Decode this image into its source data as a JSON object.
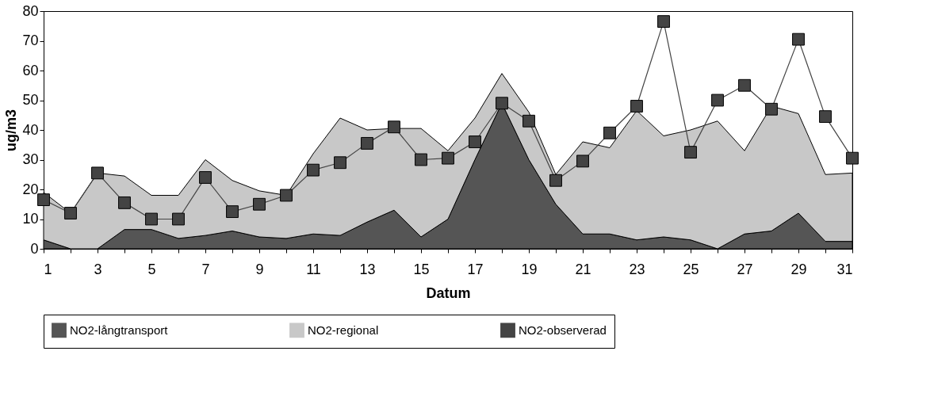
{
  "chart_data": {
    "type": "area",
    "stacked": true,
    "xlabel": "Datum",
    "ylabel": "ug/m3",
    "x": [
      1,
      2,
      3,
      4,
      5,
      6,
      7,
      8,
      9,
      10,
      11,
      12,
      13,
      14,
      15,
      16,
      17,
      18,
      19,
      20,
      21,
      22,
      23,
      24,
      25,
      26,
      27,
      28,
      29,
      30,
      31
    ],
    "series": [
      {
        "name": "NO2-långtransport",
        "type": "area",
        "color": "#555555",
        "values": [
          3,
          0,
          0,
          6.5,
          6.5,
          3.5,
          4.5,
          6,
          4,
          3.5,
          5,
          4.5,
          9,
          13,
          4,
          10,
          30,
          49,
          30,
          15,
          5,
          5,
          3,
          4,
          3,
          0,
          5,
          6,
          12,
          2.5,
          2.5
        ]
      },
      {
        "name": "NO2-regional",
        "type": "area",
        "color": "#c8c8c8",
        "values": [
          16,
          12,
          25.5,
          18,
          11.5,
          14.5,
          25.5,
          17,
          15.5,
          14.5,
          27,
          39.5,
          31,
          27.5,
          36.5,
          23,
          14,
          10,
          16,
          10,
          31,
          29,
          43.5,
          34,
          37,
          43,
          28,
          42,
          33.5,
          22.5,
          23
        ]
      },
      {
        "name": "NO2-observerad",
        "type": "line",
        "color": "#444444",
        "marker": "square",
        "values": [
          16.5,
          12,
          25.5,
          15.5,
          10,
          10,
          24,
          12.5,
          15,
          18,
          26.5,
          29,
          35.5,
          41,
          30,
          30.5,
          36,
          49,
          43,
          23,
          29.5,
          39,
          48,
          76.5,
          32.5,
          50,
          55,
          47,
          70.5,
          44.5,
          30.5
        ]
      }
    ],
    "xlim": [
      1,
      31
    ],
    "xticks": [
      1,
      {
        "value": 2,
        "label": null
      },
      3,
      {
        "value": 4,
        "label": null
      },
      5,
      {
        "value": 6,
        "label": null
      },
      7,
      {
        "value": 8,
        "label": null
      },
      9,
      {
        "value": 10,
        "label": null
      },
      11,
      {
        "value": 12,
        "label": null
      },
      13,
      {
        "value": 14,
        "label": null
      },
      15,
      {
        "value": 16,
        "label": null
      },
      17,
      {
        "value": 18,
        "label": null
      },
      19,
      {
        "value": 20,
        "label": null
      },
      21,
      {
        "value": 22,
        "label": null
      },
      23,
      {
        "value": 24,
        "label": null
      },
      25,
      {
        "value": 26,
        "label": null
      },
      27,
      {
        "value": 28,
        "label": null
      },
      29,
      {
        "value": 30,
        "label": null
      },
      31
    ],
    "ylim": [
      0,
      80
    ],
    "yticks": [
      0,
      10,
      20,
      30,
      40,
      50,
      60,
      70,
      80
    ],
    "grid": false,
    "legend": "bottom"
  }
}
